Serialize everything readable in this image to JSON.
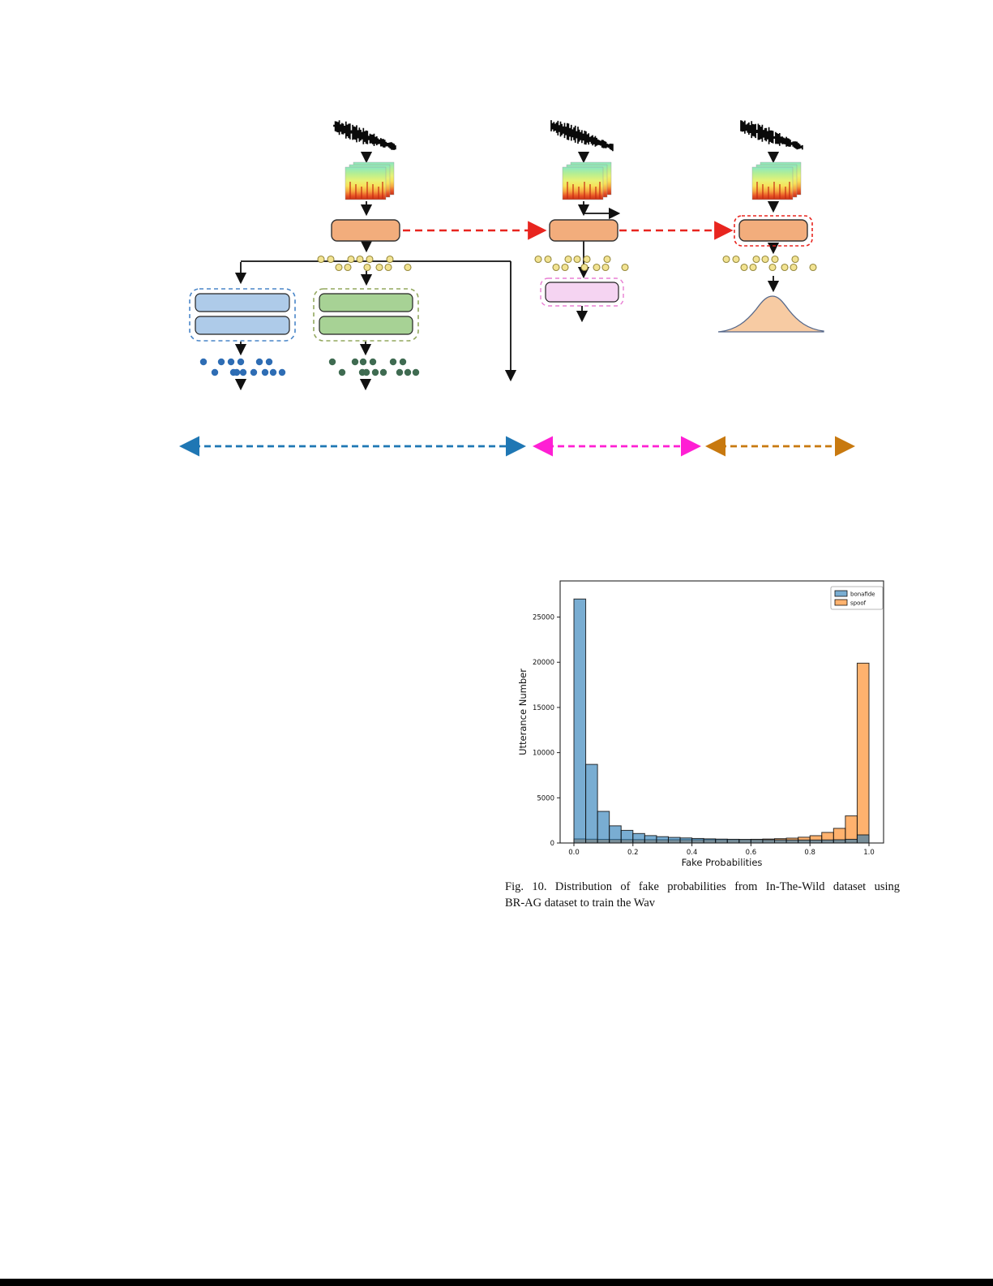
{
  "page": {
    "background": "#ffffff",
    "bottom_rule_color": "#000000"
  },
  "caption": {
    "line1": "Fig. 10.   Distribution of fake probabilities from In-The-Wild dataset using",
    "line2": "BR-AG dataset to train the Wav",
    "text": "Fig. 10. Distribution of fake probabilities from In-The-Wild dataset using BR-AG dataset to train the Wav"
  },
  "diagram": {
    "colors": {
      "encoder_box": "#f2ad7c",
      "encoder_border": "#333333",
      "transfer_arrow": "#e8251f",
      "embedding_dot": "#f2e392",
      "embedding_dot_border": "#96893c",
      "classifier_box_blue": "#aecbe9",
      "classifier_border_blue": "#4a86c8",
      "classifier_box_green": "#a7d295",
      "classifier_border_green": "#93a85f",
      "pink_box": "#f5d4f2",
      "pink_border": "#e87fd3",
      "distribution_fill": "#f7cba3",
      "distribution_stroke": "#56688a",
      "scatter_blue": "#2e6db4",
      "scatter_green": "#3f6b51",
      "stage1_arrow": "#1f77b4",
      "stage2_arrow": "#ff1fd4",
      "stage3_arrow": "#c8790f",
      "connector": "#111111"
    }
  },
  "chart_data": {
    "type": "bar",
    "subtype": "histogram",
    "title": "",
    "xlabel": "Fake Probabilities",
    "ylabel": "Utterance Number",
    "xlim": [
      -0.047,
      1.047
    ],
    "ylim": [
      0,
      29000
    ],
    "xticks": [
      0.0,
      0.2,
      0.4,
      0.6,
      0.8,
      1.0
    ],
    "yticks": [
      0,
      5000,
      10000,
      15000,
      20000,
      25000
    ],
    "bin_start": 0.0,
    "bin_width": 0.04,
    "bin_count": 25,
    "grid": false,
    "legend_position": "upper right",
    "bar_alpha": 0.6,
    "series": [
      {
        "name": "bonafide",
        "color": "#1f77b4",
        "values": [
          27000,
          8700,
          3500,
          1900,
          1400,
          1050,
          820,
          700,
          620,
          560,
          500,
          460,
          430,
          410,
          390,
          380,
          360,
          350,
          340,
          330,
          330,
          340,
          360,
          410,
          900
        ]
      },
      {
        "name": "spoof",
        "color": "#ff7f0e",
        "values": [
          450,
          420,
          400,
          390,
          380,
          375,
          370,
          365,
          365,
          365,
          365,
          370,
          375,
          380,
          390,
          410,
          440,
          480,
          540,
          640,
          810,
          1170,
          1620,
          3000,
          19900
        ]
      }
    ]
  }
}
